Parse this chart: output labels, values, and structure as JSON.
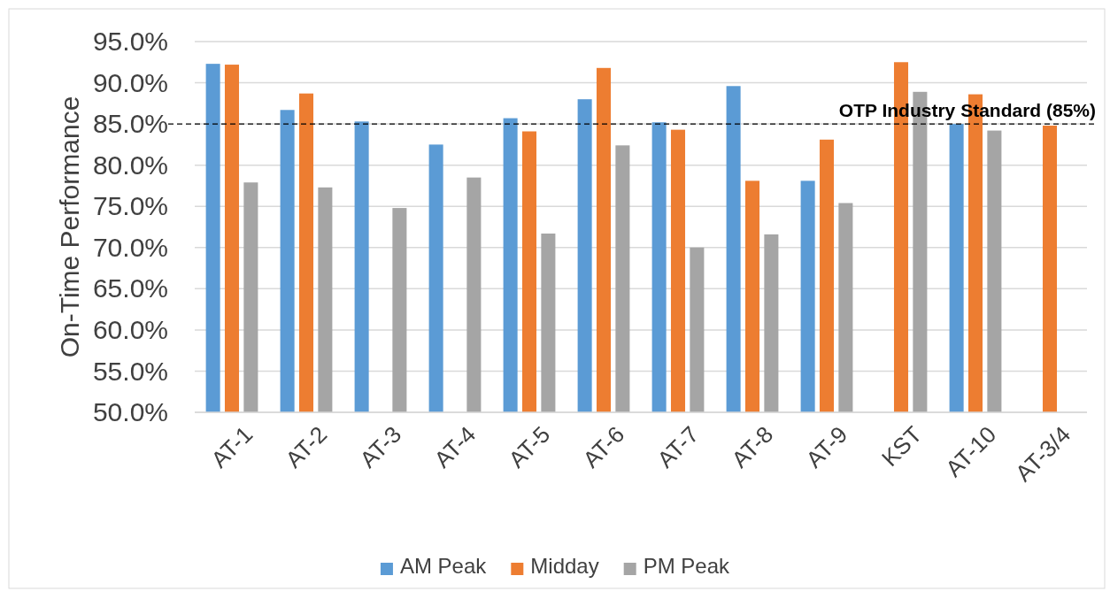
{
  "chart_data": {
    "type": "bar",
    "ylabel": "On-Time Performance",
    "categories": [
      "AT-1",
      "AT-2",
      "AT-3",
      "AT-4",
      "AT-5",
      "AT-6",
      "AT-7",
      "AT-8",
      "AT-9",
      "KST",
      "AT-10",
      "AT-3/4"
    ],
    "series": [
      {
        "name": "AM Peak",
        "color": "#5b9bd5",
        "values": [
          92.3,
          86.7,
          85.3,
          82.5,
          85.7,
          88.0,
          85.2,
          89.6,
          78.1,
          null,
          85.0,
          null
        ]
      },
      {
        "name": "Midday",
        "color": "#ed7d31",
        "values": [
          92.2,
          88.7,
          null,
          null,
          84.1,
          91.8,
          84.3,
          78.1,
          83.1,
          92.5,
          88.6,
          84.8
        ]
      },
      {
        "name": "PM Peak",
        "color": "#a5a5a5",
        "values": [
          77.9,
          77.3,
          74.8,
          78.5,
          71.7,
          82.4,
          70.0,
          71.6,
          75.4,
          88.9,
          84.2,
          null
        ]
      }
    ],
    "ylim": [
      50,
      95
    ],
    "yticks": [
      {
        "value": 50,
        "label": "50.0%"
      },
      {
        "value": 55,
        "label": "55.0%"
      },
      {
        "value": 60,
        "label": "60.0%"
      },
      {
        "value": 65,
        "label": "65.0%"
      },
      {
        "value": 70,
        "label": "70.0%"
      },
      {
        "value": 75,
        "label": "75.0%"
      },
      {
        "value": 80,
        "label": "80.0%"
      },
      {
        "value": 85,
        "label": "85.0%"
      },
      {
        "value": 90,
        "label": "90.0%"
      },
      {
        "value": 95,
        "label": "95.0%"
      }
    ],
    "grid": "y",
    "legend": "bottom",
    "ref_lines": [
      {
        "axis": "y",
        "value": 85,
        "label": "OTP Industry Standard (85%)",
        "color": "#000000",
        "line_style": "dashed"
      }
    ]
  }
}
